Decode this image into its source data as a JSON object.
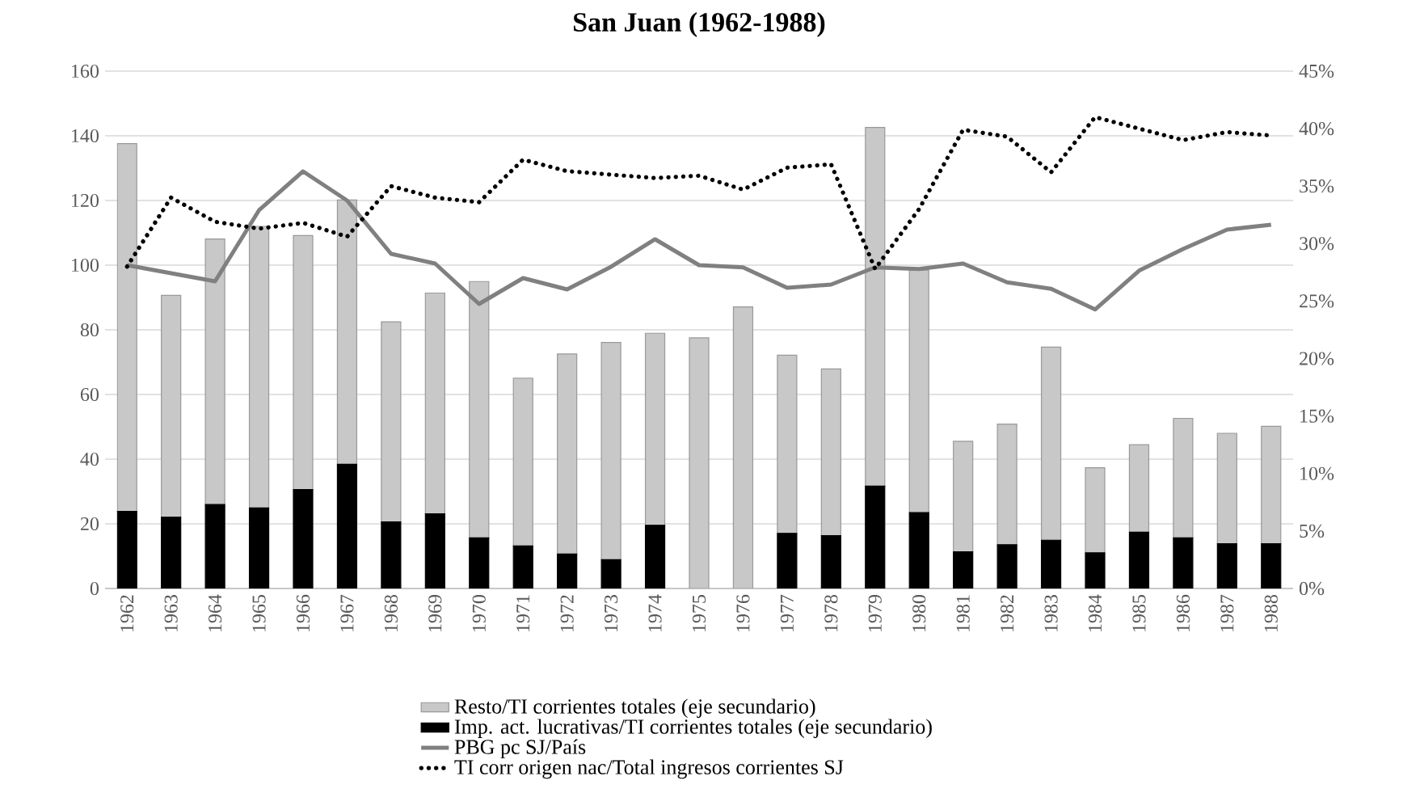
{
  "chart_data": {
    "type": "bar",
    "title": "San Juan (1962-1988)",
    "categories": [
      "1962",
      "1963",
      "1964",
      "1965",
      "1966",
      "1967",
      "1968",
      "1969",
      "1970",
      "1971",
      "1972",
      "1973",
      "1974",
      "1975",
      "1976",
      "1977",
      "1978",
      "1979",
      "1980",
      "1981",
      "1982",
      "1983",
      "1984",
      "1985",
      "1986",
      "1987",
      "1988"
    ],
    "stacked": true,
    "grid": "y",
    "legend": "bottom",
    "ylim": [
      0,
      160
    ],
    "yticks": [
      0,
      20,
      40,
      60,
      80,
      100,
      120,
      140,
      160
    ],
    "y2lim": [
      0,
      45
    ],
    "y2ticks": [
      {
        "value": 0,
        "label": "0%"
      },
      {
        "value": 5,
        "label": "5%"
      },
      {
        "value": 10,
        "label": "10%"
      },
      {
        "value": 15,
        "label": "15%"
      },
      {
        "value": 20,
        "label": "20%"
      },
      {
        "value": 25,
        "label": "25%"
      },
      {
        "value": 30,
        "label": "30%"
      },
      {
        "value": 35,
        "label": "35%"
      },
      {
        "value": 40,
        "label": "40%"
      },
      {
        "value": 45,
        "label": "45%"
      }
    ],
    "series": [
      {
        "name": "Imp. act. lucrativas/TI corrientes totales (eje secundario)",
        "axis": "y2",
        "color": "#000000",
        "values": [
          6.7,
          6.2,
          7.3,
          7.0,
          8.6,
          10.8,
          5.8,
          6.5,
          4.4,
          3.7,
          3.0,
          2.5,
          5.5,
          0,
          0,
          4.8,
          4.6,
          8.9,
          6.6,
          3.2,
          3.8,
          4.2,
          3.1,
          4.9,
          4.4,
          3.9,
          3.9
        ]
      },
      {
        "name": "Resto/TI corrientes totales (eje secundario)",
        "axis": "y2",
        "color": "#c8c8c8",
        "values": [
          32.0,
          19.3,
          23.1,
          24.5,
          22.1,
          23.0,
          17.4,
          19.2,
          22.3,
          14.6,
          17.4,
          18.9,
          16.7,
          21.8,
          24.5,
          15.5,
          14.5,
          31.2,
          21.1,
          9.6,
          10.5,
          16.8,
          7.4,
          7.6,
          10.4,
          9.6,
          10.2
        ]
      },
      {
        "name": "PBG pc SJ/País",
        "type": "line",
        "axis": "y",
        "color": "#808080",
        "line_style": "solid",
        "values": [
          100,
          97.5,
          95,
          117,
          129,
          120,
          103.5,
          100.5,
          88,
          96,
          92.5,
          99.5,
          108,
          100,
          99.3,
          93,
          94,
          99.3,
          98.8,
          100.5,
          94.7,
          92.7,
          86.3,
          98.3,
          105,
          111,
          112.5
        ]
      },
      {
        "name": "TI corr origen nac/Total ingresos corrientes SJ",
        "type": "line",
        "axis": "y2",
        "color": "#000000",
        "line_style": "dotted",
        "values": [
          28.0,
          34.0,
          31.9,
          31.3,
          31.8,
          30.6,
          35.0,
          34.0,
          33.6,
          37.3,
          36.3,
          36.0,
          35.7,
          35.9,
          34.7,
          36.6,
          36.9,
          27.8,
          33.0,
          39.9,
          39.3,
          36.2,
          41.0,
          40.0,
          39.0,
          39.7,
          39.4
        ]
      }
    ]
  }
}
